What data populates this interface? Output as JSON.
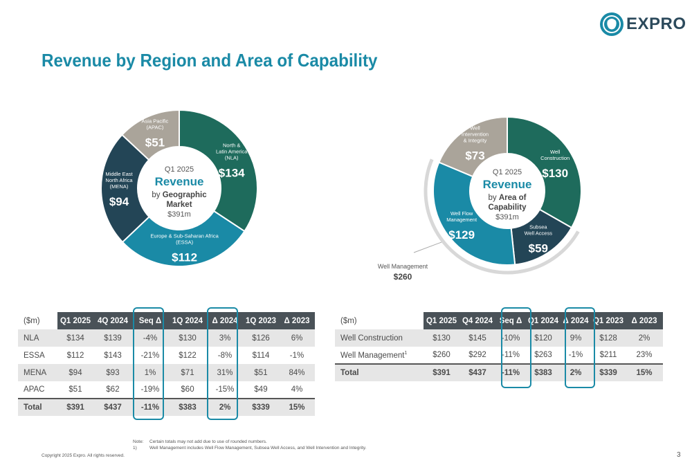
{
  "brand": {
    "name": "EXPRO",
    "color": "#1a8aa6",
    "logo_icon": "lion-head-icon"
  },
  "title": "Revenue by Region and Area of Capability",
  "chart_data": [
    {
      "type": "pie",
      "center": {
        "line1": "Q1 2025",
        "line2": "Revenue",
        "line3_prefix": "by",
        "line3_bold": "Geographic",
        "line4": "Market",
        "line5": "$391m"
      },
      "slices": [
        {
          "label_lines": [
            "North &",
            "Latin America",
            "(NLA)"
          ],
          "value": 134,
          "value_label": "$134",
          "color": "#1e6b5c"
        },
        {
          "label_lines": [
            "Europe & Sub-Saharan Africa",
            "(ESSA)"
          ],
          "value": 112,
          "value_label": "$112",
          "color": "#1a8aa6"
        },
        {
          "label_lines": [
            "Middle East",
            "North Africa",
            "(MENA)"
          ],
          "value": 94,
          "value_label": "$94",
          "color": "#234556"
        },
        {
          "label_lines": [
            "Asia Pacific",
            "(APAC)"
          ],
          "value": 51,
          "value_label": "$51",
          "color": "#aaa49a"
        }
      ]
    },
    {
      "type": "pie",
      "center": {
        "line1": "Q1 2025",
        "line2": "Revenue",
        "line3_prefix": "by",
        "line3_bold": "Area of",
        "line4": "Capability",
        "line5": "$391m"
      },
      "slices": [
        {
          "label_lines": [
            "Well",
            "Construction"
          ],
          "value": 130,
          "value_label": "$130",
          "color": "#1e6b5c"
        },
        {
          "label_lines": [
            "Subsea",
            "Well Access"
          ],
          "value": 59,
          "value_label": "$59",
          "color": "#234556"
        },
        {
          "label_lines": [
            "Well Flow",
            "Management"
          ],
          "value": 129,
          "value_label": "$129",
          "color": "#1a8aa6"
        },
        {
          "label_lines": [
            "Well",
            "Intervention",
            "& Integrity"
          ],
          "value": 73,
          "value_label": "$73",
          "color": "#aaa49a"
        }
      ],
      "group_annotation": {
        "label": "Well Management",
        "value_label": "$260"
      }
    }
  ],
  "table_region": {
    "headers": [
      "($m)",
      "Q1 2025",
      "4Q 2024",
      "Seq Δ",
      "1Q 2024",
      "Δ 2024",
      "1Q 2023",
      "Δ 2023"
    ],
    "rows": [
      [
        "NLA",
        "$134",
        "$139",
        "-4%",
        "$130",
        "3%",
        "$126",
        "6%"
      ],
      [
        "ESSA",
        "$112",
        "$143",
        "-21%",
        "$122",
        "-8%",
        "$114",
        "-1%"
      ],
      [
        "MENA",
        "$94",
        "$93",
        "1%",
        "$71",
        "31%",
        "$51",
        "84%"
      ],
      [
        "APAC",
        "$51",
        "$62",
        "-19%",
        "$60",
        "-15%",
        "$49",
        "4%"
      ],
      [
        "Total",
        "$391",
        "$437",
        "-11%",
        "$383",
        "2%",
        "$339",
        "15%"
      ]
    ]
  },
  "table_capability": {
    "headers": [
      "($m)",
      "Q1 2025",
      "Q4 2024",
      "Seq Δ",
      "Q1 2024",
      "Δ 2024",
      "Q1 2023",
      "Δ 2023"
    ],
    "rows": [
      [
        "Well Construction",
        "$130",
        "$145",
        "-10%",
        "$120",
        "9%",
        "$128",
        "2%"
      ],
      [
        "Well Management",
        "$260",
        "$292",
        "-11%",
        "$263",
        "-1%",
        "$211",
        "23%"
      ],
      [
        "Total",
        "$391",
        "$437",
        "-11%",
        "$383",
        "2%",
        "$339",
        "15%"
      ]
    ],
    "footnote_marker": "1"
  },
  "notes": {
    "label": "Note:",
    "text": "Certain totals may not add due to use of rounded numbers.",
    "fn_key": "1)",
    "fn_text": "Well Management includes Well Flow Management, Subsea Well Access, and Well Intervention and Integrity."
  },
  "copyright": "Copyright 2025 Expro. All rights reserved.",
  "page_number": "3"
}
